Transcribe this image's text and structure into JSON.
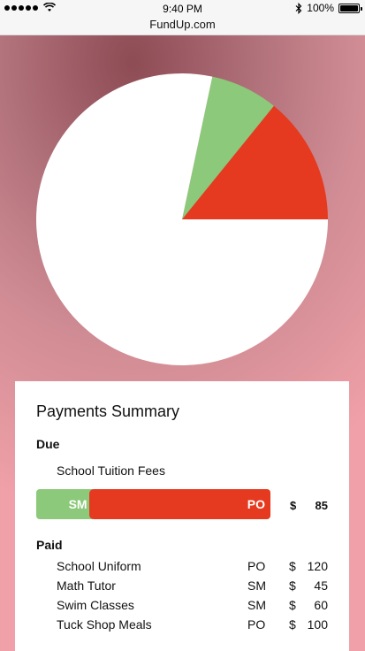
{
  "status_bar": {
    "time": "9:40 PM",
    "battery_label": "100%",
    "signal_icon": "signal-dots-icon",
    "wifi_icon": "wifi-icon",
    "bluetooth_icon": "bluetooth-icon",
    "battery_icon": "battery-icon"
  },
  "browser": {
    "url": "FundUp.com"
  },
  "chart_data": {
    "type": "pie",
    "title": "",
    "slices": [
      {
        "label": "PO",
        "value": 85,
        "color": "#e53a1f"
      },
      {
        "label": "SM",
        "value": 45,
        "color": "#8cc97a"
      },
      {
        "label": "",
        "value": 470,
        "color": "#ffffff"
      }
    ],
    "start_angle_deg": 0,
    "direction": "counterclockwise"
  },
  "summary": {
    "title": "Payments Summary",
    "due_label": "Due",
    "due_item": "School Tuition Fees",
    "due_bar": {
      "sm_label": "SM",
      "po_label": "PO",
      "sm_fraction": 0.24
    },
    "due_currency": "$",
    "due_amount": "85",
    "paid_label": "Paid",
    "paid_items": [
      {
        "name": "School Uniform",
        "method": "PO",
        "currency": "$",
        "amount": "120"
      },
      {
        "name": "Math Tutor",
        "method": "SM",
        "currency": "$",
        "amount": "45"
      },
      {
        "name": "Swim Classes",
        "method": "SM",
        "currency": "$",
        "amount": "60"
      },
      {
        "name": "Tuck Shop Meals",
        "method": "PO",
        "currency": "$",
        "amount": "100"
      }
    ]
  }
}
